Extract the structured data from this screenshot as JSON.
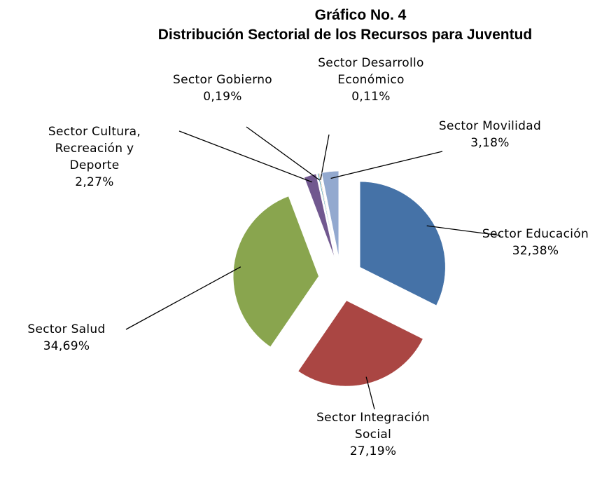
{
  "chart_data": {
    "type": "pie",
    "title": "Gráfico No. 4",
    "subtitle": "Distribución Sectorial de los Recursos para Juventud",
    "categories": [
      "Sector Educación",
      "Sector Integración Social",
      "Sector Salud",
      "Sector Cultura, Recreación y Deporte",
      "Sector Gobierno",
      "Sector Desarrollo Económico",
      "Sector Movilidad"
    ],
    "values": [
      32.38,
      27.19,
      34.69,
      2.27,
      0.19,
      0.11,
      3.18
    ],
    "value_labels": [
      "32,38%",
      "27,19%",
      "34,69%",
      "2,27%",
      "0,19%",
      "0,11%",
      "3,18%"
    ],
    "colors": [
      "#4572a7",
      "#aa4643",
      "#89a54e",
      "#71588f",
      "#4198af",
      "#db843d",
      "#93a9cf"
    ]
  }
}
